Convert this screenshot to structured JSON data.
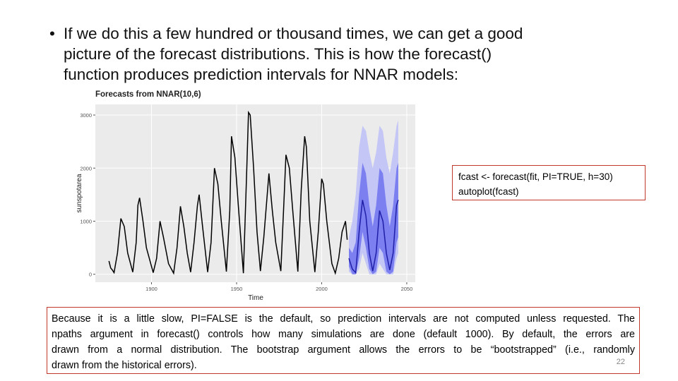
{
  "slide": {
    "bullet": [
      "If we do this a few hundred or thousand times, we can get a good",
      "picture of the forecast distributions. This is how the forecast()",
      "function produces prediction intervals for NNAR models:"
    ],
    "code": [
      "fcast <- forecast(fit, PI=TRUE, h=30)",
      "autoplot(fcast)"
    ],
    "note": [
      "Because it is a little slow, PI=FALSE is the default, so prediction intervals are not computed unless requested. The",
      "npaths argument in forecast() controls how many simulations are done (default 1000). By default, the errors are",
      "drawn from a normal distribution. The bootstrap argument allows the errors to be “bootstrapped” (i.e., randomly",
      "drawn from the historical errors)."
    ],
    "page_number": "22"
  },
  "chart": {
    "type": "line",
    "title": "Forecasts from NNAR(10,6)",
    "xlabel": "Time",
    "ylabel": "sunspotarea",
    "xlim": [
      1867,
      2055
    ],
    "ylim": [
      -150,
      3200
    ],
    "xticks": [
      1900,
      1950,
      2000,
      2050
    ],
    "yticks": [
      0,
      1000,
      2000,
      3000
    ],
    "grid": true,
    "history": {
      "color": "#000000",
      "x": [
        1875,
        1876,
        1877,
        1878,
        1880,
        1882,
        1884,
        1886,
        1889,
        1891,
        1892,
        1893,
        1895,
        1897,
        1901,
        1903,
        1905,
        1907,
        1910,
        1913,
        1915,
        1917,
        1919,
        1921,
        1923,
        1925,
        1927,
        1928,
        1930,
        1933,
        1935,
        1937,
        1939,
        1941,
        1944,
        1946,
        1947,
        1949,
        1951,
        1954,
        1956,
        1957,
        1958,
        1960,
        1962,
        1964,
        1966,
        1968,
        1969,
        1971,
        1973,
        1976,
        1978,
        1979,
        1981,
        1983,
        1986,
        1988,
        1990,
        1991,
        1993,
        1996,
        1998,
        2000,
        2001,
        2003,
        2006,
        2008,
        2010,
        2012,
        2014,
        2015
      ],
      "values": [
        250,
        120,
        80,
        30,
        400,
        1050,
        900,
        400,
        40,
        600,
        1300,
        1440,
        1000,
        500,
        30,
        300,
        1000,
        700,
        200,
        20,
        500,
        1280,
        900,
        400,
        40,
        600,
        1300,
        1500,
        900,
        40,
        600,
        2000,
        1700,
        1000,
        50,
        1200,
        2600,
        2200,
        1300,
        20,
        2000,
        3050,
        3000,
        2000,
        800,
        60,
        700,
        1500,
        1900,
        1200,
        600,
        60,
        1500,
        2250,
        2000,
        1200,
        50,
        1600,
        2600,
        2400,
        1000,
        40,
        800,
        1800,
        1700,
        1000,
        200,
        20,
        300,
        800,
        1000,
        650
      ]
    },
    "forecast": {
      "color": "#1f1fa8",
      "color80": "#7b7ff0",
      "color95": "#c4c6f6",
      "x": [
        2016,
        2018,
        2020,
        2022,
        2024,
        2026,
        2028,
        2030,
        2032,
        2034,
        2036,
        2038,
        2040,
        2042,
        2044,
        2045
      ],
      "mean": [
        300,
        100,
        30,
        800,
        1400,
        1100,
        400,
        60,
        400,
        1200,
        1000,
        400,
        80,
        400,
        1300,
        1400
      ],
      "lo80": [
        150,
        0,
        0,
        300,
        800,
        500,
        100,
        0,
        50,
        500,
        400,
        50,
        0,
        50,
        600,
        700
      ],
      "hi80": [
        500,
        400,
        600,
        1500,
        2100,
        1900,
        1300,
        900,
        1300,
        2000,
        1900,
        1300,
        900,
        1300,
        2000,
        2100
      ],
      "lo95": [
        50,
        0,
        0,
        100,
        400,
        200,
        0,
        0,
        0,
        200,
        100,
        0,
        0,
        0,
        300,
        400
      ],
      "hi95": [
        700,
        1000,
        1500,
        2400,
        2800,
        2700,
        2300,
        2000,
        2300,
        2800,
        2700,
        2200,
        1900,
        2300,
        2800,
        2900
      ]
    }
  }
}
